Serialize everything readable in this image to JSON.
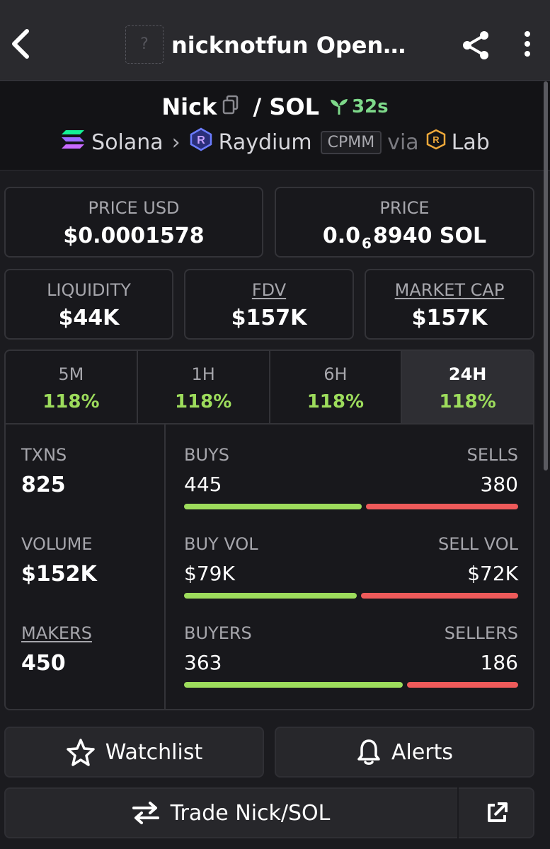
{
  "topbar": {
    "title": "nicknotfun Open…",
    "logo_placeholder": "?"
  },
  "pair": {
    "base": "Nick",
    "separator": " / ",
    "quote": "SOL",
    "age": "32s",
    "chain": "Solana",
    "dex": "Raydium",
    "pool_type": "CPMM",
    "via_label": "via",
    "launchpad": "Lab"
  },
  "metrics": {
    "price_usd_label": "PRICE USD",
    "price_usd": "$0.0001578",
    "price_label": "PRICE",
    "price_prefix": "0.0",
    "price_zeros": "6",
    "price_suffix": "8940 SOL",
    "liquidity_label": "LIQUIDITY",
    "liquidity": "$44K",
    "fdv_label": "FDV",
    "fdv": "$157K",
    "mcap_label": "MARKET CAP",
    "mcap": "$157K"
  },
  "periods": [
    {
      "label": "5M",
      "change": "118%"
    },
    {
      "label": "1H",
      "change": "118%"
    },
    {
      "label": "6H",
      "change": "118%"
    },
    {
      "label": "24H",
      "change": "118%",
      "active": true
    }
  ],
  "stats": {
    "txns_label": "TXNS",
    "txns": "825",
    "volume_label": "VOLUME",
    "volume": "$152K",
    "makers_label": "MAKERS",
    "makers": "450",
    "buys_label": "BUYS",
    "buys": "445",
    "sells_label": "SELLS",
    "sells": "380",
    "buy_vol_label": "BUY VOL",
    "buy_vol": "$79K",
    "sell_vol_label": "SELL VOL",
    "sell_vol": "$72K",
    "buyers_label": "BUYERS",
    "buyers": "363",
    "sellers_label": "SELLERS",
    "sellers": "186",
    "buy_share_txns": 0.539,
    "buy_share_vol": 0.523,
    "buy_share_makers": 0.661
  },
  "actions": {
    "watchlist": "Watchlist",
    "alerts": "Alerts",
    "trade": "Trade Nick/SOL"
  },
  "colors": {
    "positive": "#9ddc5c",
    "negative": "#ee5a5a",
    "age": "#7ed98a"
  }
}
